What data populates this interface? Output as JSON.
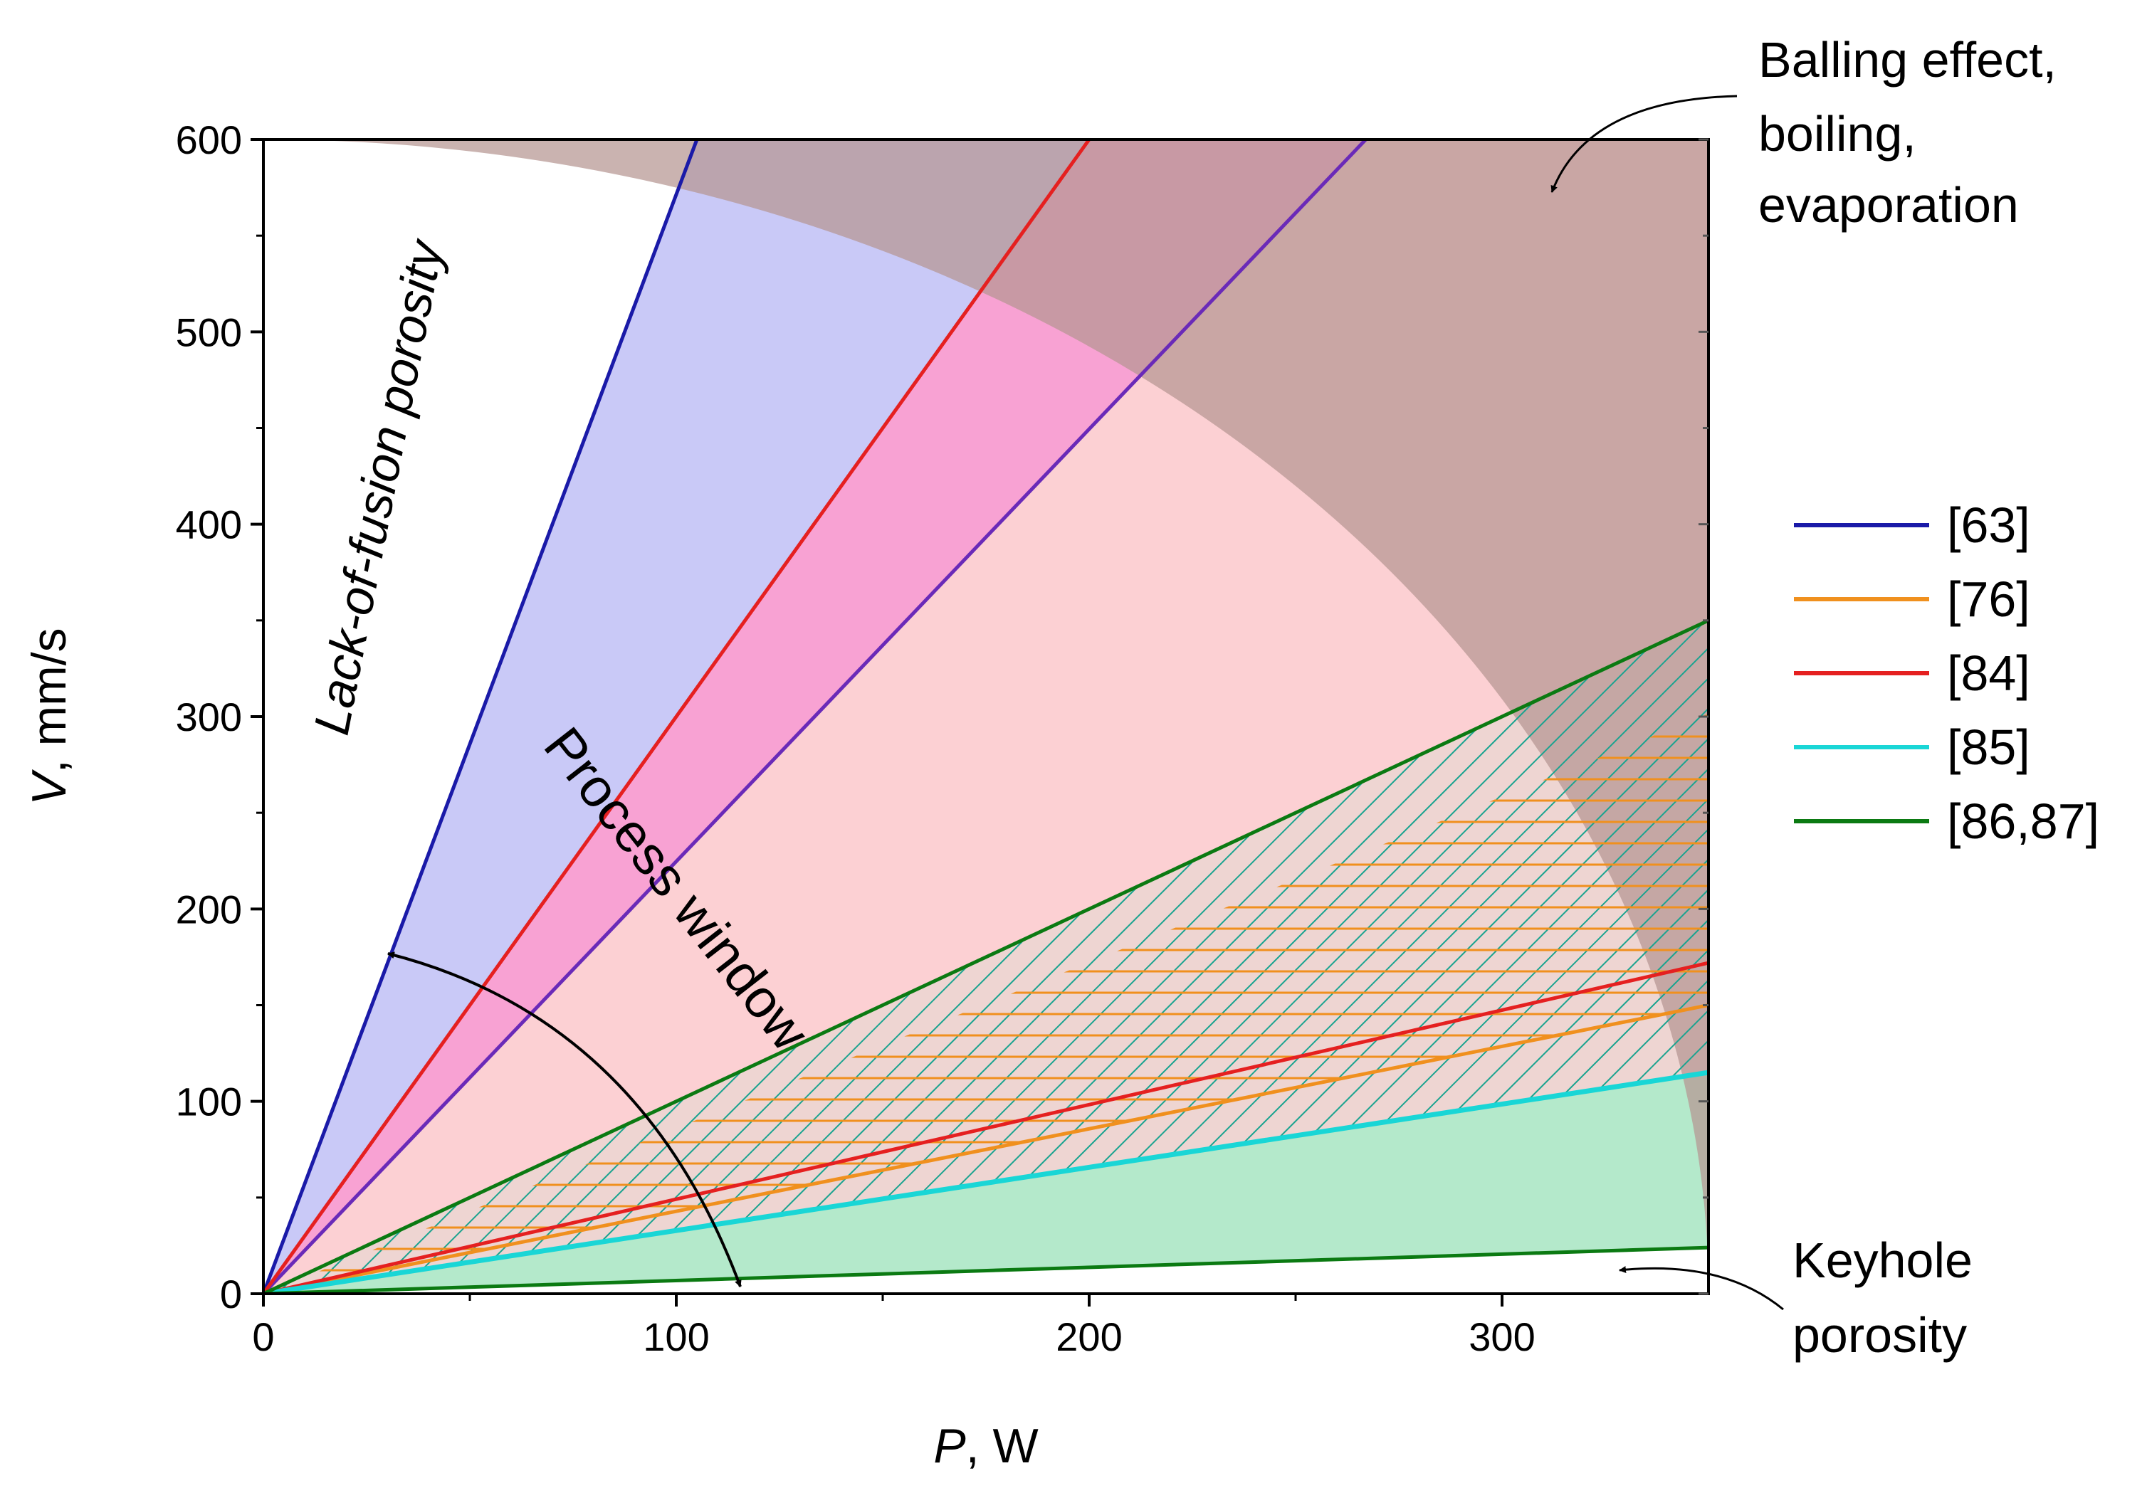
{
  "chart_data": {
    "type": "line",
    "xlabel_var": "P",
    "xlabel_unit": ", W",
    "ylabel_var": "V",
    "ylabel_unit": ", mm/s",
    "xlim": [
      0,
      350
    ],
    "ylim": [
      0,
      600
    ],
    "x_ticks": [
      0,
      100,
      200,
      300
    ],
    "y_ticks": [
      0,
      100,
      200,
      300,
      400,
      500,
      600
    ],
    "grid": false,
    "legend_position": "right",
    "series": [
      {
        "name": "[63]",
        "color": "#1a1aa8",
        "lines": [
          [
            [
              0,
              0
            ],
            [
              105,
              600
            ]
          ]
        ],
        "style": "solid"
      },
      {
        "name": "[76]",
        "color": "#f0901e",
        "lines": [
          [
            [
              0,
              0
            ],
            [
              350,
              150
            ]
          ]
        ],
        "style": "solid"
      },
      {
        "name": "[84]",
        "color": "#e52020",
        "lines": [
          [
            [
              0,
              0
            ],
            [
              200,
              600
            ]
          ],
          [
            [
              0,
              0
            ],
            [
              350,
              172
            ]
          ]
        ],
        "style": "solid"
      },
      {
        "name": "[85]",
        "color": "#19d6d6",
        "lines": [
          [
            [
              0,
              0
            ],
            [
              350,
              115
            ]
          ]
        ],
        "style": "solid"
      },
      {
        "name": "[86,87]",
        "color": "#0b7a12",
        "lines": [
          [
            [
              0,
              0
            ],
            [
              350,
              350
            ]
          ],
          [
            [
              0,
              0
            ],
            [
              350,
              24
            ]
          ]
        ],
        "style": "solid"
      }
    ],
    "extra_lines": [
      {
        "color": "#6a2ab8",
        "points": [
          [
            0,
            0
          ],
          [
            267,
            600
          ]
        ]
      }
    ],
    "regions": [
      {
        "id": "lof",
        "color": "#c9c9f7"
      },
      {
        "id": "pink-band",
        "color": "#f8a2d3"
      },
      {
        "id": "pink",
        "color": "#fcd0d3"
      },
      {
        "id": "brown",
        "color": "#b59692"
      },
      {
        "id": "green",
        "color": "#b4e9cb"
      },
      {
        "id": "hatch-green",
        "color": "#1aa38f"
      },
      {
        "id": "hatch-orange",
        "color": "#f0901e"
      }
    ],
    "boundary_arc": {
      "center": [
        0,
        0
      ],
      "x_intercept": 350,
      "y_intercept": 600
    },
    "annotations": {
      "lack_of_fusion": "Lack-of-fusion porosity",
      "process_window": "Process window",
      "balling_1": "Balling effect,",
      "balling_2": "boiling,",
      "balling_3": "evaporation",
      "keyhole_1": "Keyhole",
      "keyhole_2": "porosity"
    }
  }
}
